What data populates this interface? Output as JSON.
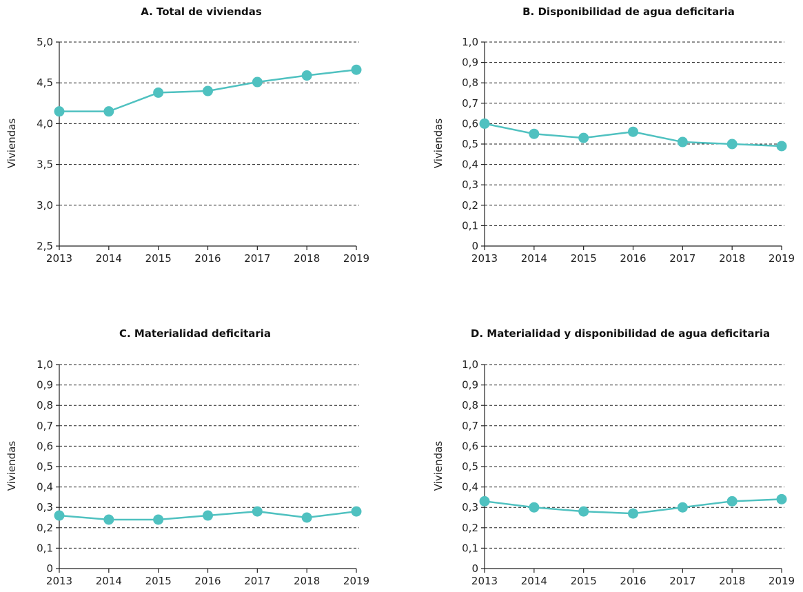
{
  "colors": {
    "series": "#4fc1c0",
    "axis": "#222222"
  },
  "chart_data": [
    {
      "type": "line",
      "title": "A. Total de viviendas",
      "xlabel": "",
      "ylabel": "Viviendas",
      "x": [
        "2013",
        "2014",
        "2015",
        "2016",
        "2017",
        "2018",
        "2019"
      ],
      "values": [
        4.15,
        4.15,
        4.38,
        4.4,
        4.51,
        4.59,
        4.66
      ],
      "ylim": [
        2.5,
        5.0
      ],
      "yticks": [
        "2,5",
        "3,0",
        "3,5",
        "4,0",
        "4,5",
        "5,0"
      ],
      "grid": true
    },
    {
      "type": "line",
      "title": "B. Disponibilidad de agua deficitaria",
      "xlabel": "",
      "ylabel": "Viviendas",
      "x": [
        "2013",
        "2014",
        "2015",
        "2016",
        "2017",
        "2018",
        "2019"
      ],
      "values": [
        0.6,
        0.55,
        0.53,
        0.56,
        0.51,
        0.5,
        0.49
      ],
      "ylim": [
        0,
        1.0
      ],
      "yticks": [
        "0",
        "0,1",
        "0,2",
        "0,3",
        "0,4",
        "0,5",
        "0,6",
        "0,7",
        "0,8",
        "0,9",
        "1,0"
      ],
      "grid": true
    },
    {
      "type": "line",
      "title": "C. Materialidad deficitaria",
      "xlabel": "",
      "ylabel": "Viviendas",
      "x": [
        "2013",
        "2014",
        "2015",
        "2016",
        "2017",
        "2018",
        "2019"
      ],
      "values": [
        0.26,
        0.24,
        0.24,
        0.26,
        0.28,
        0.25,
        0.28
      ],
      "ylim": [
        0,
        1.0
      ],
      "yticks": [
        "0",
        "0,1",
        "0,2",
        "0,3",
        "0,4",
        "0,5",
        "0,6",
        "0,7",
        "0,8",
        "0,9",
        "1,0"
      ],
      "grid": true
    },
    {
      "type": "line",
      "title": "D. Materialidad y disponibilidad de agua deficitaria",
      "xlabel": "",
      "ylabel": "Viviendas",
      "x": [
        "2013",
        "2014",
        "2015",
        "2016",
        "2017",
        "2018",
        "2019"
      ],
      "values": [
        0.33,
        0.3,
        0.28,
        0.27,
        0.3,
        0.33,
        0.34
      ],
      "ylim": [
        0,
        1.0
      ],
      "yticks": [
        "0",
        "0,1",
        "0,2",
        "0,3",
        "0,4",
        "0,5",
        "0,6",
        "0,7",
        "0,8",
        "0,9",
        "1,0"
      ],
      "grid": true
    }
  ]
}
